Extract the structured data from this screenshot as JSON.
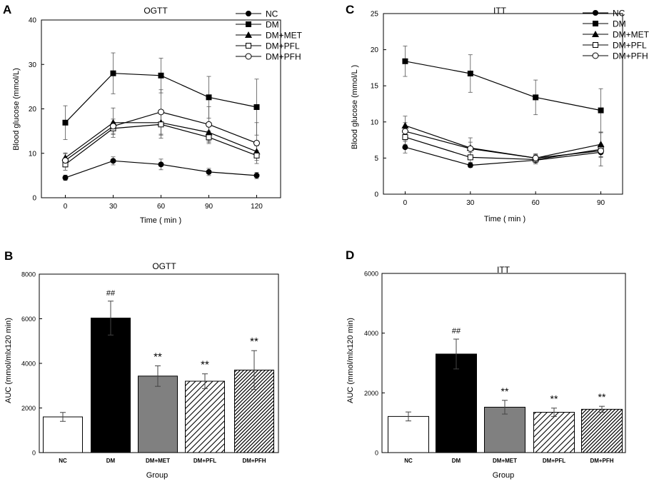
{
  "chart_data": [
    {
      "id": "A",
      "type": "line",
      "panel_label": "A",
      "title": "OGTT",
      "xlabel": "Time ( min )",
      "ylabel": "Blood glucose (mmol/L)",
      "x": [
        0,
        30,
        60,
        90,
        120
      ],
      "xticks": [
        "0",
        "30",
        "60",
        "90",
        "120"
      ],
      "ylim": [
        0,
        40
      ],
      "yticks": [
        "0",
        "10",
        "20",
        "30",
        "40"
      ],
      "legend": "top-right",
      "series": [
        {
          "name": "NC",
          "marker": "circle-filled",
          "values": [
            4.5,
            8.3,
            7.5,
            5.8,
            5.0
          ],
          "errors": [
            0.6,
            0.9,
            1.2,
            0.8,
            0.7
          ]
        },
        {
          "name": "DM",
          "marker": "square-filled",
          "values": [
            16.9,
            28.0,
            27.5,
            22.6,
            20.4
          ],
          "errors": [
            3.8,
            4.6,
            3.9,
            4.7,
            6.3
          ]
        },
        {
          "name": "DM+MET",
          "marker": "triangle-filled",
          "values": [
            9.0,
            16.9,
            16.9,
            14.7,
            10.4
          ],
          "errors": [
            1.1,
            3.3,
            2.8,
            1.9,
            1.3
          ]
        },
        {
          "name": "DM+PFL",
          "marker": "square-open",
          "values": [
            7.5,
            15.6,
            16.5,
            13.6,
            9.5
          ],
          "errors": [
            1.3,
            1.4,
            3.1,
            1.4,
            1.1
          ]
        },
        {
          "name": "DM+PFH",
          "marker": "circle-open",
          "values": [
            8.4,
            16.1,
            19.3,
            16.5,
            12.3
          ],
          "errors": [
            1.5,
            1.6,
            5.0,
            4.0,
            4.6
          ]
        }
      ]
    },
    {
      "id": "C",
      "type": "line",
      "panel_label": "C",
      "title": "ITT",
      "xlabel": "Time ( min )",
      "ylabel": "Blood glucose (mmol/L )",
      "x": [
        0,
        30,
        60,
        90
      ],
      "xticks": [
        "0",
        "30",
        "60",
        "90"
      ],
      "ylim": [
        0,
        25
      ],
      "yticks": [
        "0",
        "5",
        "10",
        "15",
        "20",
        "25"
      ],
      "legend": "top-right",
      "series": [
        {
          "name": "NC",
          "marker": "circle-filled",
          "values": [
            6.5,
            4.0,
            4.7,
            5.8
          ],
          "errors": [
            0.8,
            0.3,
            0.5,
            0.6
          ]
        },
        {
          "name": "DM",
          "marker": "square-filled",
          "values": [
            18.4,
            16.7,
            13.4,
            11.6
          ],
          "errors": [
            2.1,
            2.6,
            2.4,
            3.0
          ]
        },
        {
          "name": "DM+MET",
          "marker": "triangle-filled",
          "values": [
            9.5,
            6.4,
            5.0,
            6.9
          ],
          "errors": [
            1.3,
            1.4,
            0.5,
            1.7
          ]
        },
        {
          "name": "DM+PFL",
          "marker": "square-open",
          "values": [
            7.9,
            5.1,
            4.8,
            6.2
          ],
          "errors": [
            1.0,
            0.7,
            0.6,
            2.3
          ]
        },
        {
          "name": "DM+PFH",
          "marker": "circle-open",
          "values": [
            8.7,
            6.3,
            5.0,
            6.0
          ],
          "errors": [
            1.2,
            0.9,
            0.6,
            0.9
          ]
        }
      ]
    },
    {
      "id": "B",
      "type": "bar",
      "panel_label": "B",
      "title": "OGTT",
      "xlabel": "Group",
      "ylabel": "AUC (mmol/mlx120 min)",
      "categories": [
        "NC",
        "DM",
        "DM+MET",
        "DM+PFL",
        "DM+PFH"
      ],
      "values": [
        1600,
        6030,
        3430,
        3200,
        3700
      ],
      "errors": [
        200,
        760,
        460,
        330,
        870
      ],
      "fills": [
        "white",
        "black",
        "gray",
        "hatch-wide",
        "hatch-dense"
      ],
      "annotations": [
        "",
        "##",
        "**",
        "**",
        "**"
      ],
      "ylim": [
        0,
        8000
      ],
      "yticks": [
        "0",
        "2000",
        "4000",
        "6000",
        "8000"
      ]
    },
    {
      "id": "D",
      "type": "bar",
      "panel_label": "D",
      "title": "ITT",
      "xlabel": "Group",
      "ylabel": "AUC (mmol/mlx120 min)",
      "categories": [
        "NC",
        "DM",
        "DM+MET",
        "DM+PFL",
        "DM+PFH"
      ],
      "values": [
        1210,
        3300,
        1520,
        1350,
        1450
      ],
      "errors": [
        150,
        500,
        230,
        140,
        100
      ],
      "fills": [
        "white",
        "black",
        "gray",
        "hatch-wide",
        "hatch-dense"
      ],
      "annotations": [
        "",
        "##",
        "**",
        "**",
        "**"
      ],
      "ylim": [
        0,
        6000
      ],
      "yticks": [
        "0",
        "2000",
        "4000",
        "6000"
      ]
    }
  ]
}
